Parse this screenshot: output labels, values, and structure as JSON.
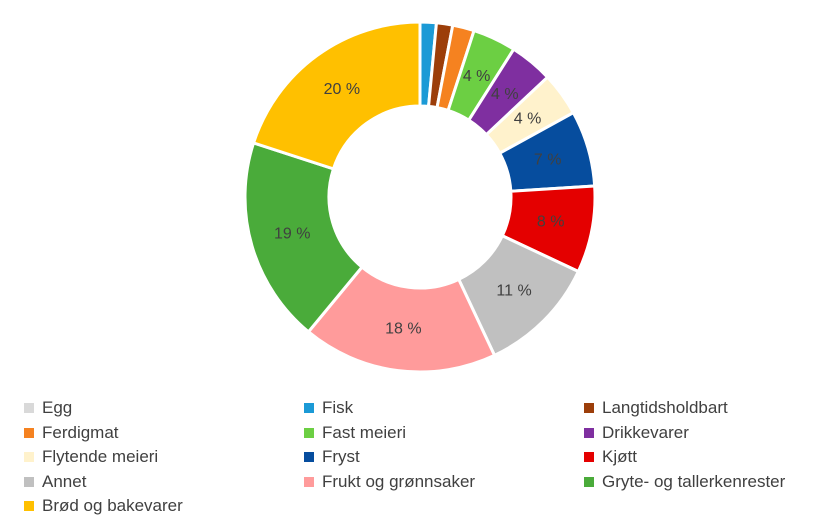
{
  "chart_data": {
    "type": "pie",
    "donut": true,
    "legend_position": "bottom",
    "slices": [
      {
        "name": "Egg",
        "value": 0,
        "label": "",
        "color": "#d9d9d9"
      },
      {
        "name": "Fisk",
        "value": 1.5,
        "label": "",
        "color": "#1b9ad6"
      },
      {
        "name": "Langtidsholdbart",
        "value": 1.5,
        "label": "",
        "color": "#9c3e0a"
      },
      {
        "name": "Ferdigmat",
        "value": 2,
        "label": "",
        "color": "#f58220"
      },
      {
        "name": "Fast meieri",
        "value": 4,
        "label": "4 %",
        "color": "#6ccf43"
      },
      {
        "name": "Drikkevarer",
        "value": 4,
        "label": "4 %",
        "color": "#7f2fa0"
      },
      {
        "name": "Flytende meieri",
        "value": 4,
        "label": "4 %",
        "color": "#fff2cc"
      },
      {
        "name": "Fryst",
        "value": 7,
        "label": "7 %",
        "color": "#064d9e"
      },
      {
        "name": "Kjøtt",
        "value": 8,
        "label": "8 %",
        "color": "#e40000"
      },
      {
        "name": "Annet",
        "value": 11,
        "label": "11 %",
        "color": "#c0c0c0"
      },
      {
        "name": "Frukt og grønnsaker",
        "value": 18,
        "label": "18 %",
        "color": "#ff9b9b"
      },
      {
        "name": "Gryte- og tallerkenrester",
        "value": 19,
        "label": "19 %",
        "color": "#4aab3a"
      },
      {
        "name": "Brød og bakevarer",
        "value": 20,
        "label": "20 %",
        "color": "#ffc000"
      }
    ]
  }
}
